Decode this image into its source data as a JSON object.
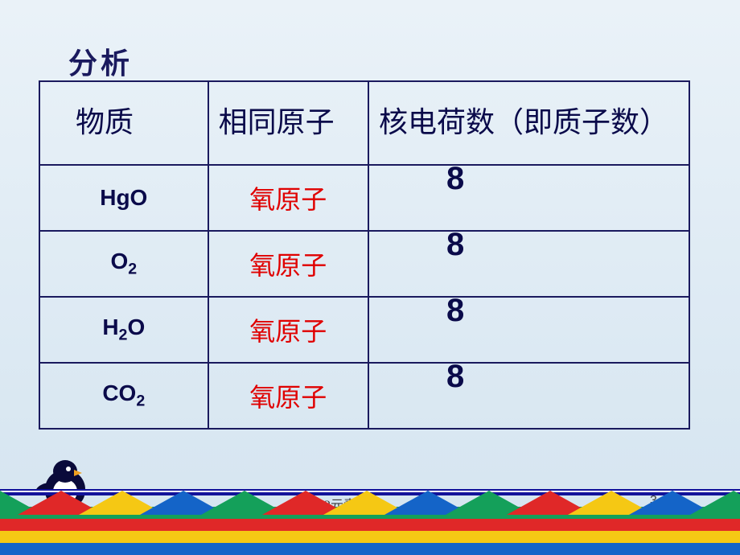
{
  "title": "分析",
  "table": {
    "headers": [
      "物质",
      "相同原子",
      "核电荷数（即质子数）"
    ],
    "rows": [
      {
        "formula_html": "HgO",
        "atom": "氧原子",
        "value": "8"
      },
      {
        "formula_html": "O<sub>2</sub>",
        "atom": "氧原子",
        "value": "8"
      },
      {
        "formula_html": "H<sub>2</sub>O",
        "atom": "氧原子",
        "value": "8"
      },
      {
        "formula_html": "CO<sub>2</sub>",
        "atom": "氧原子",
        "value": "8"
      }
    ]
  },
  "footer": "32元素的",
  "page": "3",
  "triangle_colors": [
    "#14a05a",
    "#e02828",
    "#f5c814",
    "#1464c8"
  ]
}
